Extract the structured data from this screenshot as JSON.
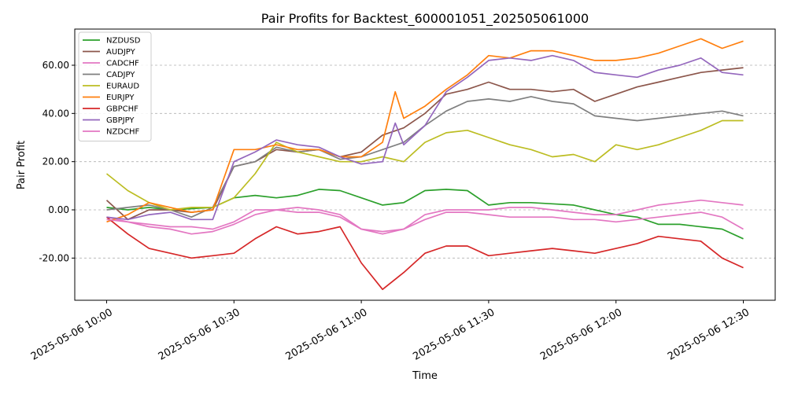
{
  "chart_data": {
    "type": "line",
    "title": "Pair Profits for Backtest_600001051_202505061000",
    "xlabel": "Time",
    "ylabel": "Pair Profit",
    "x_ticks": [
      "2025-05-06 10:00",
      "2025-05-06 10:30",
      "2025-05-06 11:00",
      "2025-05-06 11:30",
      "2025-05-06 12:00",
      "2025-05-06 12:30"
    ],
    "x_tick_minutes": [
      0,
      30,
      60,
      90,
      120,
      150
    ],
    "x_range_minutes": [
      -7.5,
      157.5
    ],
    "y_ticks": [
      -20,
      0,
      20,
      40,
      60
    ],
    "y_tick_labels": [
      "-20.00",
      "0.00",
      "20.00",
      "40.00",
      "60.00"
    ],
    "ylim": [
      -37.5,
      75
    ],
    "grid": "y-dashed",
    "legend_position": "top-left",
    "series": [
      {
        "name": "NZDUSD",
        "color": "#2ca02c",
        "points": [
          [
            0,
            1
          ],
          [
            5,
            0
          ],
          [
            10,
            1
          ],
          [
            15,
            0
          ],
          [
            20,
            0.5
          ],
          [
            25,
            1
          ],
          [
            30,
            5
          ],
          [
            35,
            6
          ],
          [
            40,
            5
          ],
          [
            45,
            6
          ],
          [
            50,
            8.5
          ],
          [
            55,
            8
          ],
          [
            60,
            5
          ],
          [
            65,
            2
          ],
          [
            70,
            3
          ],
          [
            75,
            8
          ],
          [
            80,
            8.5
          ],
          [
            85,
            8
          ],
          [
            90,
            2
          ],
          [
            95,
            3
          ],
          [
            100,
            3
          ],
          [
            105,
            2.5
          ],
          [
            110,
            2
          ],
          [
            115,
            0
          ],
          [
            120,
            -2
          ],
          [
            125,
            -3
          ],
          [
            130,
            -6
          ],
          [
            135,
            -6
          ],
          [
            140,
            -7
          ],
          [
            145,
            -8
          ],
          [
            150,
            -12
          ]
        ]
      },
      {
        "name": "AUDJPY",
        "color": "#8c564b",
        "points": [
          [
            0,
            4
          ],
          [
            5,
            -4
          ],
          [
            10,
            0
          ],
          [
            15,
            0
          ],
          [
            20,
            -1
          ],
          [
            25,
            0
          ],
          [
            30,
            18
          ],
          [
            35,
            20
          ],
          [
            40,
            25
          ],
          [
            45,
            24
          ],
          [
            50,
            25
          ],
          [
            55,
            22
          ],
          [
            60,
            24
          ],
          [
            65,
            31
          ],
          [
            70,
            34
          ],
          [
            75,
            40
          ],
          [
            80,
            48
          ],
          [
            85,
            50
          ],
          [
            90,
            53
          ],
          [
            95,
            50
          ],
          [
            100,
            50
          ],
          [
            105,
            49
          ],
          [
            110,
            50
          ],
          [
            115,
            45
          ],
          [
            120,
            48
          ],
          [
            125,
            51
          ],
          [
            130,
            53
          ],
          [
            135,
            55
          ],
          [
            140,
            57
          ],
          [
            145,
            58
          ],
          [
            150,
            59
          ]
        ]
      },
      {
        "name": "CADCHF",
        "color": "#e377c2",
        "points": [
          [
            0,
            -3
          ],
          [
            5,
            -5
          ],
          [
            10,
            -6
          ],
          [
            15,
            -7
          ],
          [
            20,
            -7
          ],
          [
            25,
            -8
          ],
          [
            30,
            -5
          ],
          [
            35,
            0
          ],
          [
            40,
            0
          ],
          [
            45,
            -1
          ],
          [
            50,
            -1
          ],
          [
            55,
            -3
          ],
          [
            60,
            -8
          ],
          [
            65,
            -9
          ],
          [
            70,
            -8
          ],
          [
            75,
            -4
          ],
          [
            80,
            -1
          ],
          [
            85,
            -1
          ],
          [
            90,
            -2
          ],
          [
            95,
            -3
          ],
          [
            100,
            -3
          ],
          [
            105,
            -3
          ],
          [
            110,
            -4
          ],
          [
            115,
            -4
          ],
          [
            120,
            -5
          ],
          [
            125,
            -4
          ],
          [
            130,
            -3
          ],
          [
            135,
            -2
          ],
          [
            140,
            -1
          ],
          [
            145,
            -3
          ],
          [
            150,
            -8
          ]
        ]
      },
      {
        "name": "CADJPY",
        "color": "#7f7f7f",
        "points": [
          [
            0,
            0
          ],
          [
            5,
            1
          ],
          [
            10,
            2
          ],
          [
            15,
            0
          ],
          [
            20,
            -3
          ],
          [
            25,
            1
          ],
          [
            30,
            18
          ],
          [
            35,
            20
          ],
          [
            40,
            26
          ],
          [
            45,
            24
          ],
          [
            50,
            25
          ],
          [
            55,
            21
          ],
          [
            60,
            22
          ],
          [
            65,
            25
          ],
          [
            70,
            28
          ],
          [
            75,
            35
          ],
          [
            80,
            41
          ],
          [
            85,
            45
          ],
          [
            90,
            46
          ],
          [
            95,
            45
          ],
          [
            100,
            47
          ],
          [
            105,
            45
          ],
          [
            110,
            44
          ],
          [
            115,
            39
          ],
          [
            120,
            38
          ],
          [
            125,
            37
          ],
          [
            130,
            38
          ],
          [
            135,
            39
          ],
          [
            140,
            40
          ],
          [
            145,
            41
          ],
          [
            150,
            39
          ]
        ]
      },
      {
        "name": "EURAUD",
        "color": "#bcbd22",
        "points": [
          [
            0,
            15
          ],
          [
            5,
            8
          ],
          [
            10,
            3
          ],
          [
            15,
            0
          ],
          [
            20,
            1
          ],
          [
            25,
            1
          ],
          [
            30,
            5
          ],
          [
            35,
            15
          ],
          [
            40,
            28
          ],
          [
            45,
            24
          ],
          [
            50,
            22
          ],
          [
            55,
            20
          ],
          [
            60,
            20
          ],
          [
            65,
            22
          ],
          [
            70,
            20
          ],
          [
            75,
            28
          ],
          [
            80,
            32
          ],
          [
            85,
            33
          ],
          [
            90,
            30
          ],
          [
            95,
            27
          ],
          [
            100,
            25
          ],
          [
            105,
            22
          ],
          [
            110,
            23
          ],
          [
            115,
            20
          ],
          [
            120,
            27
          ],
          [
            125,
            25
          ],
          [
            130,
            27
          ],
          [
            135,
            30
          ],
          [
            140,
            33
          ],
          [
            145,
            37
          ],
          [
            150,
            37
          ]
        ]
      },
      {
        "name": "EURJPY",
        "color": "#ff7f0e",
        "points": [
          [
            0,
            -5
          ],
          [
            5,
            -2
          ],
          [
            10,
            3
          ],
          [
            15,
            1
          ],
          [
            20,
            -1
          ],
          [
            25,
            0
          ],
          [
            30,
            25
          ],
          [
            35,
            25
          ],
          [
            40,
            27
          ],
          [
            45,
            25
          ],
          [
            50,
            25
          ],
          [
            55,
            22
          ],
          [
            60,
            22
          ],
          [
            65,
            28
          ],
          [
            68,
            49
          ],
          [
            70,
            38
          ],
          [
            75,
            43
          ],
          [
            80,
            50
          ],
          [
            85,
            56
          ],
          [
            90,
            64
          ],
          [
            95,
            63
          ],
          [
            100,
            66
          ],
          [
            105,
            66
          ],
          [
            110,
            64
          ],
          [
            115,
            62
          ],
          [
            120,
            62
          ],
          [
            125,
            63
          ],
          [
            130,
            65
          ],
          [
            135,
            68
          ],
          [
            140,
            71
          ],
          [
            145,
            67
          ],
          [
            150,
            70
          ]
        ]
      },
      {
        "name": "GBPCHF",
        "color": "#d62728",
        "points": [
          [
            0,
            -3
          ],
          [
            5,
            -10
          ],
          [
            10,
            -16
          ],
          [
            15,
            -18
          ],
          [
            20,
            -20
          ],
          [
            25,
            -19
          ],
          [
            30,
            -18
          ],
          [
            35,
            -12
          ],
          [
            40,
            -7
          ],
          [
            45,
            -10
          ],
          [
            50,
            -9
          ],
          [
            55,
            -7
          ],
          [
            60,
            -22
          ],
          [
            65,
            -33
          ],
          [
            70,
            -26
          ],
          [
            75,
            -18
          ],
          [
            80,
            -15
          ],
          [
            85,
            -15
          ],
          [
            90,
            -19
          ],
          [
            95,
            -18
          ],
          [
            100,
            -17
          ],
          [
            105,
            -16
          ],
          [
            110,
            -17
          ],
          [
            115,
            -18
          ],
          [
            120,
            -16
          ],
          [
            125,
            -14
          ],
          [
            130,
            -11
          ],
          [
            135,
            -12
          ],
          [
            140,
            -13
          ],
          [
            145,
            -20
          ],
          [
            150,
            -24
          ]
        ]
      },
      {
        "name": "GBPJPY",
        "color": "#9467bd",
        "points": [
          [
            0,
            -3
          ],
          [
            5,
            -4
          ],
          [
            10,
            -2
          ],
          [
            15,
            -1
          ],
          [
            20,
            -4
          ],
          [
            25,
            -4
          ],
          [
            30,
            20
          ],
          [
            35,
            24
          ],
          [
            40,
            29
          ],
          [
            45,
            27
          ],
          [
            50,
            26
          ],
          [
            55,
            22
          ],
          [
            60,
            19
          ],
          [
            65,
            20
          ],
          [
            68,
            36
          ],
          [
            70,
            27
          ],
          [
            75,
            35
          ],
          [
            80,
            49
          ],
          [
            85,
            55
          ],
          [
            90,
            62
          ],
          [
            95,
            63
          ],
          [
            100,
            62
          ],
          [
            105,
            64
          ],
          [
            110,
            62
          ],
          [
            115,
            57
          ],
          [
            120,
            56
          ],
          [
            125,
            55
          ],
          [
            130,
            58
          ],
          [
            135,
            60
          ],
          [
            140,
            63
          ],
          [
            145,
            57
          ],
          [
            150,
            56
          ]
        ]
      },
      {
        "name": "NZDCHF",
        "color": "#e377c2",
        "points": [
          [
            0,
            -4
          ],
          [
            5,
            -5
          ],
          [
            10,
            -7
          ],
          [
            15,
            -8
          ],
          [
            20,
            -10
          ],
          [
            25,
            -9
          ],
          [
            30,
            -6
          ],
          [
            35,
            -2
          ],
          [
            40,
            0
          ],
          [
            45,
            1
          ],
          [
            50,
            0
          ],
          [
            55,
            -2
          ],
          [
            60,
            -8
          ],
          [
            65,
            -10
          ],
          [
            70,
            -8
          ],
          [
            75,
            -2
          ],
          [
            80,
            0
          ],
          [
            85,
            0
          ],
          [
            90,
            0
          ],
          [
            95,
            1
          ],
          [
            100,
            1
          ],
          [
            105,
            0
          ],
          [
            110,
            -1
          ],
          [
            115,
            -2
          ],
          [
            120,
            -2
          ],
          [
            125,
            0
          ],
          [
            130,
            2
          ],
          [
            135,
            3
          ],
          [
            140,
            4
          ],
          [
            145,
            3
          ],
          [
            150,
            2
          ]
        ]
      }
    ]
  }
}
